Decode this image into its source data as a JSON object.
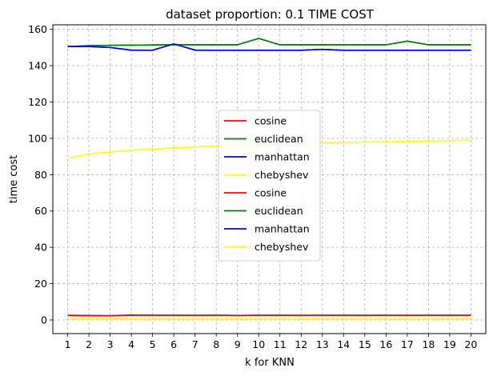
{
  "chart_data": {
    "type": "line",
    "title": "dataset proportion: 0.1 TIME COST",
    "xlabel": "k for KNN",
    "ylabel": "time cost",
    "x": [
      1,
      2,
      3,
      4,
      5,
      6,
      7,
      8,
      9,
      10,
      11,
      12,
      13,
      14,
      15,
      16,
      17,
      18,
      19,
      20
    ],
    "xlim": [
      0.3,
      20.7
    ],
    "ylim": [
      -7.5,
      162.5
    ],
    "yticks": [
      0,
      20,
      40,
      60,
      80,
      100,
      120,
      140,
      160
    ],
    "grid": true,
    "legend_position": "center",
    "series": [
      {
        "name": "cosine",
        "color": "#ff0000",
        "values": [
          2.5,
          2.3,
          2.3,
          2.6,
          2.6,
          2.6,
          2.5,
          2.6,
          2.5,
          2.6,
          2.6,
          2.5,
          2.6,
          2.6,
          2.5,
          2.6,
          2.5,
          2.6,
          2.6,
          2.6
        ]
      },
      {
        "name": "euclidean",
        "color": "#008000",
        "values": [
          150.5,
          151,
          151.2,
          151.3,
          151.4,
          151.5,
          151.5,
          151.5,
          151.5,
          155,
          151.5,
          151.5,
          151.5,
          151.5,
          151.5,
          151.5,
          153.5,
          151.5,
          151.5,
          151.5
        ]
      },
      {
        "name": "manhattan",
        "color": "#0000ff",
        "values": [
          150.5,
          150.5,
          150,
          148.5,
          148.5,
          152,
          148.5,
          148.5,
          148.5,
          148.5,
          148.5,
          148.5,
          149,
          148.5,
          148.5,
          148.5,
          148.5,
          148.5,
          148.5,
          148.5
        ]
      },
      {
        "name": "chebyshev",
        "color": "#ffff00",
        "values": [
          89,
          91.5,
          92.5,
          93.5,
          94,
          94.8,
          95.3,
          95.9,
          96.4,
          96.8,
          97.1,
          97.4,
          97.6,
          97.8,
          98,
          98.2,
          98.4,
          98.6,
          98.8,
          99
        ]
      },
      {
        "name": "cosine",
        "color": "#ff0000",
        "values": [
          2.6,
          2.5,
          2.4,
          2.7,
          2.6,
          2.6,
          2.6,
          2.6,
          2.5,
          2.6,
          2.6,
          2.6,
          2.6,
          2.6,
          2.6,
          2.6,
          2.6,
          2.6,
          2.6,
          2.6
        ]
      },
      {
        "name": "euclidean",
        "color": "#008000",
        "values": [
          150.6,
          151,
          151.2,
          151.3,
          151.4,
          151.5,
          151.5,
          151.5,
          151.5,
          155,
          151.5,
          151.5,
          151.5,
          151.5,
          151.5,
          151.5,
          153.5,
          151.5,
          151.5,
          151.5
        ]
      },
      {
        "name": "manhattan",
        "color": "#0000ff",
        "values": [
          150.5,
          150.6,
          150,
          148.6,
          148.5,
          152,
          148.6,
          148.5,
          148.5,
          148.5,
          148.5,
          148.5,
          149,
          148.5,
          148.5,
          148.5,
          148.5,
          148.5,
          148.5,
          148.5
        ]
      },
      {
        "name": "chebyshev",
        "color": "#ffff00",
        "values": [
          0.5,
          0.5,
          0.5,
          0.5,
          0.5,
          0.5,
          0.5,
          0.5,
          0.5,
          0.5,
          0.5,
          0.5,
          0.5,
          0.5,
          0.5,
          0.5,
          0.5,
          0.5,
          0.5,
          0.5
        ]
      }
    ]
  }
}
